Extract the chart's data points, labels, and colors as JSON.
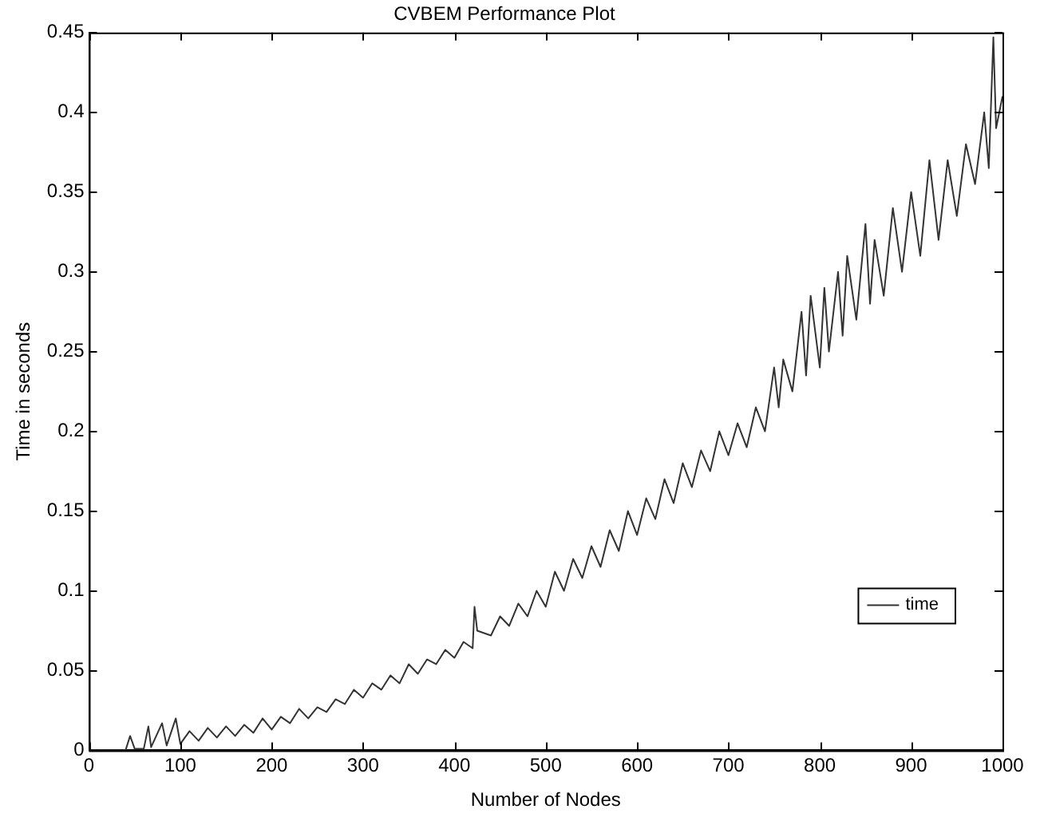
{
  "chart_data": {
    "type": "line",
    "title": "CVBEM Performance Plot",
    "xlabel": "Number of Nodes",
    "ylabel": "Time in seconds",
    "xlim": [
      0,
      1000
    ],
    "xticks": [
      0,
      100,
      200,
      300,
      400,
      500,
      600,
      700,
      800,
      900,
      1000
    ],
    "ylim": [
      0,
      0.45
    ],
    "yticks": [
      0,
      0.05,
      0.1,
      0.15,
      0.2,
      0.25,
      0.3,
      0.35,
      0.4,
      0.45
    ],
    "grid": false,
    "legend": "bottom right",
    "marker": "none",
    "line_style": "solid",
    "series": [
      {
        "name": "time",
        "color": "#333333",
        "x": [
          0,
          40,
          45,
          50,
          60,
          65,
          68,
          80,
          85,
          95,
          100,
          110,
          120,
          130,
          140,
          150,
          160,
          170,
          180,
          190,
          200,
          210,
          220,
          230,
          240,
          250,
          260,
          270,
          280,
          290,
          300,
          310,
          320,
          330,
          340,
          350,
          360,
          370,
          380,
          390,
          400,
          410,
          420,
          422,
          425,
          440,
          450,
          460,
          470,
          480,
          490,
          500,
          510,
          520,
          530,
          540,
          550,
          560,
          570,
          580,
          590,
          600,
          610,
          620,
          630,
          640,
          650,
          660,
          670,
          680,
          690,
          700,
          710,
          720,
          730,
          740,
          750,
          755,
          760,
          770,
          780,
          785,
          790,
          800,
          805,
          810,
          820,
          825,
          830,
          840,
          850,
          855,
          860,
          870,
          880,
          890,
          900,
          910,
          920,
          930,
          940,
          950,
          960,
          970,
          980,
          985,
          990,
          993,
          1000
        ],
        "values": [
          0,
          0,
          0.009,
          0.001,
          0.001,
          0.015,
          0.002,
          0.017,
          0.003,
          0.02,
          0.004,
          0.012,
          0.006,
          0.014,
          0.008,
          0.015,
          0.009,
          0.016,
          0.011,
          0.02,
          0.013,
          0.021,
          0.017,
          0.026,
          0.02,
          0.027,
          0.024,
          0.032,
          0.029,
          0.038,
          0.033,
          0.042,
          0.038,
          0.047,
          0.042,
          0.054,
          0.048,
          0.057,
          0.054,
          0.063,
          0.058,
          0.068,
          0.064,
          0.09,
          0.075,
          0.072,
          0.084,
          0.078,
          0.092,
          0.084,
          0.1,
          0.09,
          0.112,
          0.1,
          0.12,
          0.108,
          0.128,
          0.115,
          0.138,
          0.125,
          0.15,
          0.135,
          0.158,
          0.145,
          0.17,
          0.155,
          0.18,
          0.165,
          0.188,
          0.175,
          0.2,
          0.185,
          0.205,
          0.19,
          0.215,
          0.2,
          0.24,
          0.215,
          0.245,
          0.225,
          0.275,
          0.235,
          0.285,
          0.24,
          0.29,
          0.25,
          0.3,
          0.26,
          0.31,
          0.27,
          0.33,
          0.28,
          0.32,
          0.285,
          0.34,
          0.3,
          0.35,
          0.31,
          0.37,
          0.32,
          0.37,
          0.335,
          0.38,
          0.355,
          0.4,
          0.365,
          0.447,
          0.39,
          0.41
        ]
      }
    ]
  }
}
